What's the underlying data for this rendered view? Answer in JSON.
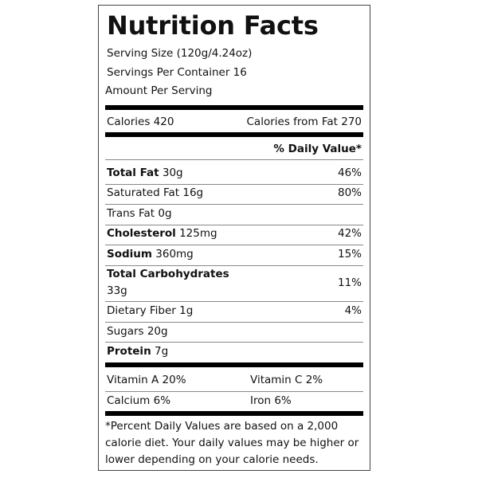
{
  "title": "Nutrition Facts",
  "serving_size": "Serving Size (120g/4.24oz)",
  "servings_per_container": "Servings Per Container 16",
  "amount_per_serving": "Amount Per Serving",
  "calories": "Calories 420",
  "calories_from_fat": "Calories from Fat 270",
  "daily_value_header": "% Daily Value*",
  "total_fat": {
    "label": "Total Fat",
    "amount": "30g",
    "dv": "46%"
  },
  "saturated_fat": {
    "text": "Saturated Fat 16g",
    "dv": "80%"
  },
  "trans_fat": {
    "text": "Trans Fat 0g"
  },
  "cholesterol": {
    "label": "Cholesterol",
    "amount": "125mg",
    "dv": "42%"
  },
  "sodium": {
    "label": "Sodium",
    "amount": "360mg",
    "dv": "15%"
  },
  "total_carbohydrates": {
    "label": "Total Carbohydrates",
    "amount": "33g",
    "dv": "11%"
  },
  "dietary_fiber": {
    "text": "Dietary Fiber 1g",
    "dv": "4%"
  },
  "sugars": {
    "text": "Sugars 20g"
  },
  "protein": {
    "label": "Protein",
    "amount": "7g"
  },
  "vitamins": {
    "vitamin_a": "Vitamin A 20%",
    "vitamin_c": "Vitamin C 2%",
    "calcium": "Calcium 6%",
    "iron": "Iron 6%"
  },
  "footnote": "*Percent Daily Values are based on a 2,000 calorie diet. Your daily values may be higher or lower depending on your calorie needs."
}
